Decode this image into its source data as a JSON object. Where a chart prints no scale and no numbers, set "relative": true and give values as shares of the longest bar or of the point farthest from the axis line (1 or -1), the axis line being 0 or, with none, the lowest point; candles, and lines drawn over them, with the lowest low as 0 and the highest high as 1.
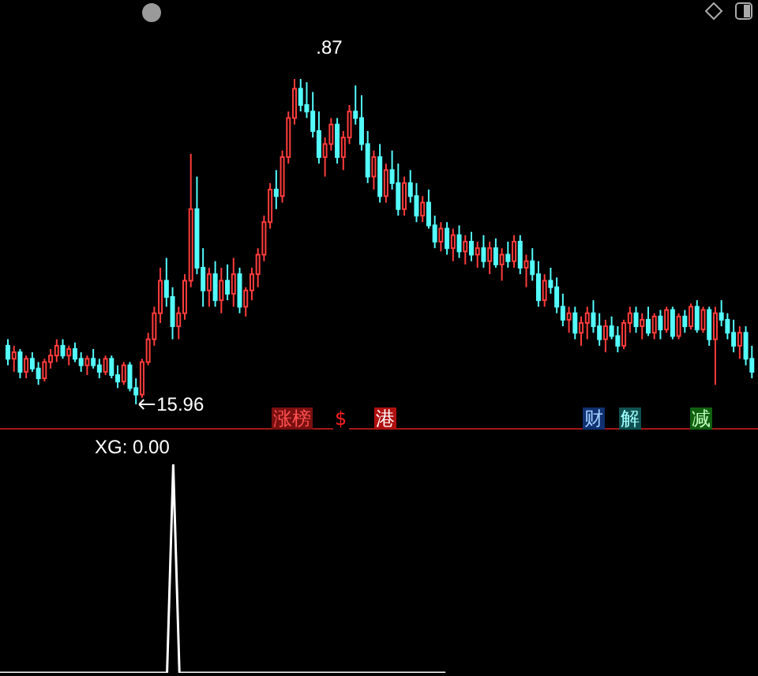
{
  "chart_data": [
    {
      "type": "candlestick",
      "relative": true,
      "colors": [
        "#54fcfc",
        "#ff3c3c",
        "#54fcfc",
        "#ff3c3c",
        "#54fcfc",
        "#54fcfc",
        "#ff3c3c",
        "#ff3c3c",
        "#ff3c3c",
        "#54fcfc",
        "#ff3c3c",
        "#54fcfc",
        "#54fcfc",
        "#ff3c3c",
        "#54fcfc",
        "#54fcfc",
        "#ff3c3c",
        "#54fcfc",
        "#54fcfc",
        "#ff3c3c",
        "#54fcfc",
        "#54fcfc",
        "#ff3c3c",
        "#ff3c3c",
        "#ff3c3c",
        "#ff3c3c",
        "#54fcfc",
        "#54fcfc",
        "#ff3c3c",
        "#ff3c3c",
        "#ff3c3c",
        "#54fcfc",
        "#54fcfc",
        "#ff3c3c",
        "#54fcfc",
        "#ff3c3c",
        "#54fcfc",
        "#ff3c3c",
        "#54fcfc",
        "#ff3c3c",
        "#ff3c3c",
        "#ff3c3c",
        "#ff3c3c",
        "#ff3c3c",
        "#54fcfc",
        "#ff3c3c",
        "#ff3c3c",
        "#ff3c3c",
        "#54fcfc",
        "#54fcfc",
        "#54fcfc",
        "#54fcfc",
        "#ff3c3c",
        "#ff3c3c",
        "#54fcfc",
        "#ff3c3c",
        "#ff3c3c",
        "#54fcfc",
        "#54fcfc",
        "#54fcfc",
        "#ff3c3c",
        "#54fcfc",
        "#ff3c3c",
        "#54fcfc",
        "#54fcfc",
        "#ff3c3c",
        "#54fcfc",
        "#54fcfc",
        "#ff3c3c",
        "#54fcfc",
        "#54fcfc",
        "#ff3c3c",
        "#54fcfc",
        "#ff3c3c",
        "#54fcfc",
        "#ff3c3c",
        "#54fcfc",
        "#ff3c3c",
        "#54fcfc",
        "#ff3c3c",
        "#54fcfc",
        "#ff3c3c",
        "#54fcfc",
        "#ff3c3c",
        "#54fcfc",
        "#ff3c3c",
        "#54fcfc",
        "#54fcfc",
        "#ff3c3c",
        "#54fcfc",
        "#54fcfc",
        "#54fcfc",
        "#ff3c3c",
        "#54fcfc",
        "#ff3c3c",
        "#ff3c3c",
        "#54fcfc",
        "#54fcfc",
        "#ff3c3c",
        "#54fcfc",
        "#54fcfc",
        "#ff3c3c",
        "#ff3c3c",
        "#54fcfc",
        "#ff3c3c",
        "#54fcfc",
        "#ff3c3c",
        "#54fcfc",
        "#ff3c3c",
        "#54fcfc",
        "#ff3c3c",
        "#54fcfc",
        "#ff3c3c",
        "#54fcfc",
        "#ff3c3c",
        "#54fcfc",
        "#ff3c3c",
        "#54fcfc",
        "#54fcfc",
        "#54fcfc",
        "#ff3c3c",
        "#54fcfc",
        "#54fcfc"
      ],
      "categories": [
        null,
        null,
        null,
        null,
        null,
        null,
        null,
        null,
        null,
        null,
        null,
        null,
        null,
        null,
        null,
        null,
        null,
        null,
        null,
        null,
        null,
        null,
        null,
        null,
        null,
        null,
        null,
        null,
        null,
        null,
        null,
        null,
        null,
        null,
        null,
        null,
        null,
        null,
        null,
        null,
        null,
        null,
        null,
        null,
        null,
        null,
        null,
        null,
        null,
        null,
        null,
        null,
        null,
        null,
        null,
        null,
        null,
        null,
        null,
        null,
        null,
        null,
        null,
        null,
        null,
        null,
        null,
        null,
        null,
        null,
        null,
        null,
        null,
        null,
        null,
        null,
        null,
        null,
        null,
        null,
        null,
        null,
        null,
        null,
        null,
        null,
        null,
        null,
        null,
        null,
        null,
        null,
        null,
        null,
        null,
        null,
        null,
        null,
        null,
        null,
        null,
        null,
        null,
        null,
        null,
        null,
        null,
        null,
        null,
        null,
        null,
        null,
        null,
        null,
        null,
        null,
        null,
        null,
        null,
        null,
        null,
        null,
        null
      ],
      "ohlc": [
        [
          0.18,
          0.2,
          0.12,
          0.14
        ],
        [
          0.14,
          0.18,
          0.1,
          0.16
        ],
        [
          0.16,
          0.17,
          0.08,
          0.1
        ],
        [
          0.1,
          0.15,
          0.08,
          0.14
        ],
        [
          0.14,
          0.16,
          0.1,
          0.11
        ],
        [
          0.11,
          0.13,
          0.06,
          0.08
        ],
        [
          0.08,
          0.14,
          0.07,
          0.13
        ],
        [
          0.13,
          0.17,
          0.11,
          0.15
        ],
        [
          0.15,
          0.2,
          0.13,
          0.18
        ],
        [
          0.18,
          0.2,
          0.14,
          0.15
        ],
        [
          0.15,
          0.18,
          0.12,
          0.17
        ],
        [
          0.17,
          0.19,
          0.13,
          0.14
        ],
        [
          0.14,
          0.16,
          0.1,
          0.12
        ],
        [
          0.12,
          0.15,
          0.09,
          0.14
        ],
        [
          0.14,
          0.17,
          0.11,
          0.12
        ],
        [
          0.12,
          0.14,
          0.08,
          0.1
        ],
        [
          0.1,
          0.15,
          0.09,
          0.14
        ],
        [
          0.14,
          0.15,
          0.08,
          0.09
        ],
        [
          0.09,
          0.12,
          0.05,
          0.07
        ],
        [
          0.07,
          0.13,
          0.06,
          0.12
        ],
        [
          0.12,
          0.13,
          0.04,
          0.05
        ],
        [
          0.05,
          0.08,
          0,
          0.03
        ],
        [
          0.03,
          0.14,
          0.02,
          0.13
        ],
        [
          0.13,
          0.22,
          0.12,
          0.2
        ],
        [
          0.2,
          0.3,
          0.18,
          0.28
        ],
        [
          0.28,
          0.42,
          0.25,
          0.38
        ],
        [
          0.38,
          0.45,
          0.3,
          0.33
        ],
        [
          0.33,
          0.36,
          0.2,
          0.24
        ],
        [
          0.24,
          0.3,
          0.2,
          0.28
        ],
        [
          0.28,
          0.4,
          0.26,
          0.38
        ],
        [
          0.38,
          0.77,
          0.36,
          0.6
        ],
        [
          0.6,
          0.7,
          0.4,
          0.42
        ],
        [
          0.42,
          0.48,
          0.3,
          0.35
        ],
        [
          0.35,
          0.42,
          0.3,
          0.4
        ],
        [
          0.4,
          0.44,
          0.3,
          0.32
        ],
        [
          0.32,
          0.42,
          0.28,
          0.38
        ],
        [
          0.38,
          0.43,
          0.32,
          0.34
        ],
        [
          0.34,
          0.45,
          0.3,
          0.4
        ],
        [
          0.4,
          0.42,
          0.28,
          0.3
        ],
        [
          0.3,
          0.36,
          0.27,
          0.35
        ],
        [
          0.35,
          0.42,
          0.32,
          0.4
        ],
        [
          0.4,
          0.48,
          0.36,
          0.46
        ],
        [
          0.46,
          0.58,
          0.44,
          0.56
        ],
        [
          0.56,
          0.68,
          0.54,
          0.66
        ],
        [
          0.66,
          0.72,
          0.6,
          0.64
        ],
        [
          0.64,
          0.78,
          0.62,
          0.76
        ],
        [
          0.76,
          0.9,
          0.74,
          0.88
        ],
        [
          0.88,
          1,
          0.86,
          0.97
        ],
        [
          0.97,
          1,
          0.9,
          0.92
        ],
        [
          0.92,
          0.99,
          0.88,
          0.9
        ],
        [
          0.9,
          0.96,
          0.82,
          0.84
        ],
        [
          0.84,
          0.9,
          0.74,
          0.76
        ],
        [
          0.76,
          0.82,
          0.7,
          0.8
        ],
        [
          0.8,
          0.88,
          0.78,
          0.86
        ],
        [
          0.86,
          0.88,
          0.74,
          0.76
        ],
        [
          0.76,
          0.84,
          0.72,
          0.82
        ],
        [
          0.82,
          0.92,
          0.8,
          0.9
        ],
        [
          0.9,
          0.98,
          0.86,
          0.88
        ],
        [
          0.88,
          0.95,
          0.78,
          0.8
        ],
        [
          0.8,
          0.84,
          0.68,
          0.7
        ],
        [
          0.7,
          0.78,
          0.66,
          0.76
        ],
        [
          0.76,
          0.8,
          0.62,
          0.64
        ],
        [
          0.64,
          0.74,
          0.62,
          0.72
        ],
        [
          0.72,
          0.78,
          0.66,
          0.68
        ],
        [
          0.68,
          0.74,
          0.58,
          0.6
        ],
        [
          0.6,
          0.7,
          0.58,
          0.68
        ],
        [
          0.68,
          0.72,
          0.62,
          0.64
        ],
        [
          0.64,
          0.68,
          0.56,
          0.58
        ],
        [
          0.58,
          0.64,
          0.56,
          0.62
        ],
        [
          0.62,
          0.66,
          0.54,
          0.55
        ],
        [
          0.55,
          0.58,
          0.48,
          0.5
        ],
        [
          0.5,
          0.56,
          0.47,
          0.54
        ],
        [
          0.54,
          0.56,
          0.46,
          0.48
        ],
        [
          0.48,
          0.54,
          0.44,
          0.52
        ],
        [
          0.52,
          0.55,
          0.45,
          0.47
        ],
        [
          0.47,
          0.52,
          0.43,
          0.5
        ],
        [
          0.5,
          0.53,
          0.44,
          0.46
        ],
        [
          0.46,
          0.5,
          0.42,
          0.48
        ],
        [
          0.48,
          0.52,
          0.42,
          0.44
        ],
        [
          0.44,
          0.5,
          0.4,
          0.48
        ],
        [
          0.48,
          0.51,
          0.42,
          0.43
        ],
        [
          0.43,
          0.48,
          0.38,
          0.46
        ],
        [
          0.46,
          0.5,
          0.42,
          0.44
        ],
        [
          0.44,
          0.52,
          0.42,
          0.5
        ],
        [
          0.5,
          0.52,
          0.4,
          0.42
        ],
        [
          0.42,
          0.46,
          0.36,
          0.44
        ],
        [
          0.44,
          0.48,
          0.38,
          0.4
        ],
        [
          0.4,
          0.44,
          0.3,
          0.32
        ],
        [
          0.32,
          0.4,
          0.3,
          0.38
        ],
        [
          0.38,
          0.42,
          0.34,
          0.36
        ],
        [
          0.36,
          0.39,
          0.28,
          0.3
        ],
        [
          0.3,
          0.34,
          0.24,
          0.26
        ],
        [
          0.26,
          0.3,
          0.22,
          0.28
        ],
        [
          0.28,
          0.3,
          0.2,
          0.22
        ],
        [
          0.22,
          0.27,
          0.18,
          0.25
        ],
        [
          0.25,
          0.3,
          0.2,
          0.28
        ],
        [
          0.28,
          0.32,
          0.22,
          0.24
        ],
        [
          0.24,
          0.28,
          0.18,
          0.2
        ],
        [
          0.2,
          0.26,
          0.16,
          0.24
        ],
        [
          0.24,
          0.27,
          0.2,
          0.21
        ],
        [
          0.21,
          0.24,
          0.16,
          0.18
        ],
        [
          0.18,
          0.26,
          0.17,
          0.25
        ],
        [
          0.25,
          0.3,
          0.22,
          0.28
        ],
        [
          0.28,
          0.3,
          0.22,
          0.24
        ],
        [
          0.24,
          0.28,
          0.2,
          0.26
        ],
        [
          0.26,
          0.3,
          0.21,
          0.22
        ],
        [
          0.22,
          0.28,
          0.2,
          0.27
        ],
        [
          0.27,
          0.29,
          0.2,
          0.23
        ],
        [
          0.23,
          0.3,
          0.22,
          0.29
        ],
        [
          0.29,
          0.3,
          0.2,
          0.21
        ],
        [
          0.21,
          0.28,
          0.2,
          0.27
        ],
        [
          0.27,
          0.29,
          0.22,
          0.24
        ],
        [
          0.24,
          0.31,
          0.23,
          0.3
        ],
        [
          0.3,
          0.32,
          0.22,
          0.23
        ],
        [
          0.23,
          0.3,
          0.22,
          0.29
        ],
        [
          0.29,
          0.3,
          0.18,
          0.2
        ],
        [
          0.2,
          0.3,
          0.06,
          0.28
        ],
        [
          0.28,
          0.32,
          0.24,
          0.26
        ],
        [
          0.26,
          0.28,
          0.2,
          0.22
        ],
        [
          0.22,
          0.26,
          0.16,
          0.18
        ],
        [
          0.18,
          0.24,
          0.14,
          0.22
        ],
        [
          0.22,
          0.24,
          0.12,
          0.14
        ],
        [
          0.14,
          0.18,
          0.08,
          0.1
        ]
      ],
      "annotations": [
        ".87",
        "15.96",
        "涨榜",
        "$",
        "港",
        "财",
        "解",
        "减"
      ]
    },
    {
      "type": "line",
      "title": "XG: 0.00",
      "relative": true,
      "categories": [
        null,
        null,
        null,
        null,
        null,
        null,
        null,
        null,
        null,
        null,
        null,
        null,
        null,
        null,
        null,
        null,
        null,
        null,
        null,
        null,
        null,
        null,
        null,
        null,
        null,
        null,
        null,
        null,
        null,
        null,
        null,
        null,
        null,
        null,
        null,
        null,
        null,
        null,
        null,
        null,
        null,
        null,
        null,
        null,
        null,
        null,
        null,
        null,
        null,
        null,
        null,
        null,
        null,
        null,
        null,
        null,
        null,
        null,
        null,
        null,
        null,
        null,
        null,
        null,
        null,
        null,
        null,
        null,
        null,
        null,
        null,
        null,
        null,
        null,
        null,
        null,
        null,
        null,
        null,
        null,
        null,
        null,
        null,
        null,
        null,
        null,
        null,
        null,
        null,
        null,
        null,
        null,
        null,
        null,
        null,
        null,
        null,
        null,
        null,
        null,
        null,
        null,
        null,
        null,
        null,
        null,
        null,
        null,
        null,
        null,
        null,
        null,
        null,
        null,
        null,
        null,
        null,
        null,
        null,
        null,
        null,
        null,
        null
      ],
      "series": [
        {
          "color": "#ffffff",
          "values": [
            0,
            0,
            0,
            0,
            0,
            0,
            0,
            0,
            0,
            0,
            0,
            0,
            0,
            0,
            0,
            0,
            0,
            0,
            0,
            0,
            0,
            0,
            0,
            0,
            0,
            0,
            0,
            0,
            1,
            0,
            0,
            0,
            0,
            0,
            0,
            0,
            0,
            0,
            0,
            0,
            0,
            0,
            0,
            0,
            0,
            0,
            0,
            0,
            0,
            0,
            0,
            0,
            0,
            0,
            0,
            0,
            0,
            0,
            0,
            0,
            0,
            0,
            0,
            0,
            0,
            0,
            0,
            0,
            0,
            0,
            0,
            0,
            0,
            null,
            null,
            null,
            null,
            null,
            null,
            null,
            null,
            null,
            null,
            null,
            null,
            null,
            null,
            null,
            null,
            null,
            null,
            null,
            null,
            null,
            null,
            null,
            null,
            null,
            null,
            null,
            null,
            null,
            null,
            null,
            null,
            null,
            null,
            null,
            null,
            null,
            null,
            null,
            null,
            null,
            null,
            null,
            null,
            null,
            null,
            null,
            null,
            null,
            null
          ]
        }
      ]
    }
  ]
}
